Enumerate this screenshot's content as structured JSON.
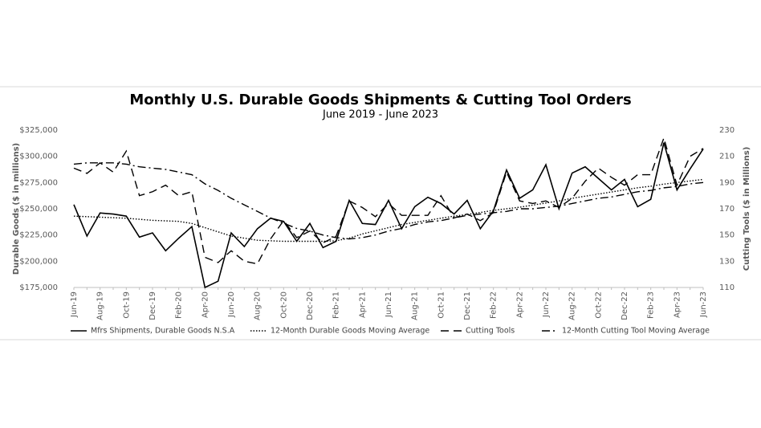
{
  "chart_data": {
    "type": "line",
    "title": "Monthly U.S. Durable Goods Shipments & Cutting Tool Orders",
    "subtitle": "June 2019 - June 2023",
    "y_label": "Durable Goods  ($ in millions)",
    "y2_label": "Cutting Tools  ($ in Millions)",
    "categories": [
      "Jun-19",
      null,
      "Aug-19",
      null,
      "Oct-19",
      null,
      "Dec-19",
      null,
      "Feb-20",
      null,
      "Apr-20",
      null,
      "Jun-20",
      null,
      "Aug-20",
      null,
      "Oct-20",
      null,
      "Dec-20",
      null,
      "Feb-21",
      null,
      "Apr-21",
      null,
      "Jun-21",
      null,
      "Aug-21",
      null,
      "Oct-21",
      null,
      "Dec-21",
      null,
      "Feb-22",
      null,
      "Apr-22",
      null,
      "Jun-22",
      null,
      "Aug-22",
      null,
      "Oct-22",
      null,
      "Dec-22",
      null,
      "Feb-23",
      null,
      "Apr-23",
      null,
      "Jun-23"
    ],
    "ylim": [
      175000,
      325000
    ],
    "yticks": [
      {
        "value": 175000,
        "label": "$175,000"
      },
      {
        "value": 200000,
        "label": "$200,000"
      },
      {
        "value": 225000,
        "label": "$225,000"
      },
      {
        "value": 250000,
        "label": "$250,000"
      },
      {
        "value": 275000,
        "label": "$275,000"
      },
      {
        "value": 300000,
        "label": "$300,000"
      },
      {
        "value": 325000,
        "label": "$325,000"
      }
    ],
    "y2lim": [
      110,
      230
    ],
    "y2ticks": [
      110,
      130,
      150,
      170,
      190,
      210,
      230
    ],
    "grid": false,
    "legend": "bottom",
    "series": [
      {
        "name": "Mfrs Shipments, Durable Goods N.S.A",
        "color": "#000000",
        "line_style": "solid",
        "values": [
          254000,
          224000,
          246000,
          245000,
          243000,
          223000,
          227000,
          210000,
          222000,
          233000,
          175000,
          181000,
          227000,
          214000,
          231000,
          241000,
          238000,
          219000,
          236000,
          213000,
          219000,
          258000,
          236000,
          235000,
          258000,
          231000,
          252000,
          261000,
          255000,
          245000,
          258000,
          231000,
          248000,
          287000,
          260000,
          268000,
          292000,
          250000,
          284000,
          290000,
          279000,
          268000,
          278000,
          252000,
          259000,
          313000,
          268000,
          288000,
          307000
        ]
      },
      {
        "name": "12-Month Durable Goods Moving Average",
        "color": "#000000",
        "line_style": "dotted",
        "values": [
          243000,
          242500,
          242000,
          241500,
          241000,
          240000,
          239000,
          238500,
          238000,
          236000,
          232000,
          228000,
          224000,
          222000,
          220000,
          219500,
          219000,
          219000,
          219000,
          219000,
          219500,
          222000,
          226000,
          229000,
          232000,
          235000,
          237000,
          239000,
          241000,
          243000,
          244500,
          246500,
          248500,
          250000,
          251500,
          253500,
          255500,
          257500,
          260000,
          262000,
          264000,
          266000,
          268000,
          270000,
          271500,
          273500,
          275000,
          276500,
          278000
        ]
      },
      {
        "name": "Cutting Tools",
        "color": "#000000",
        "line_style": "dashed",
        "axis": "y2",
        "values": [
          201,
          197,
          205,
          198,
          214,
          180,
          183,
          188,
          180,
          183,
          133,
          129,
          138,
          130,
          128,
          147,
          161,
          148,
          153,
          144,
          149,
          176,
          171,
          164,
          174,
          165,
          165,
          165,
          180,
          163,
          166,
          161,
          167,
          198,
          176,
          174,
          176,
          171,
          178,
          191,
          201,
          194,
          188,
          196,
          196,
          224,
          188,
          210,
          216
        ]
      },
      {
        "name": "12-Month Cutting Tool Moving Average",
        "color": "#000000",
        "line_style": "dashdot",
        "axis": "y2",
        "values": [
          204,
          205,
          205,
          205,
          204,
          202,
          201,
          200,
          198,
          196,
          189,
          184,
          178,
          173,
          168,
          163,
          159,
          155,
          153,
          150,
          148,
          147,
          148,
          150,
          153,
          155,
          158,
          160,
          161,
          163,
          165,
          166,
          167,
          168,
          170,
          170,
          171,
          172,
          174,
          176,
          178,
          179,
          181,
          183,
          184,
          186,
          187,
          189,
          190
        ]
      }
    ]
  }
}
